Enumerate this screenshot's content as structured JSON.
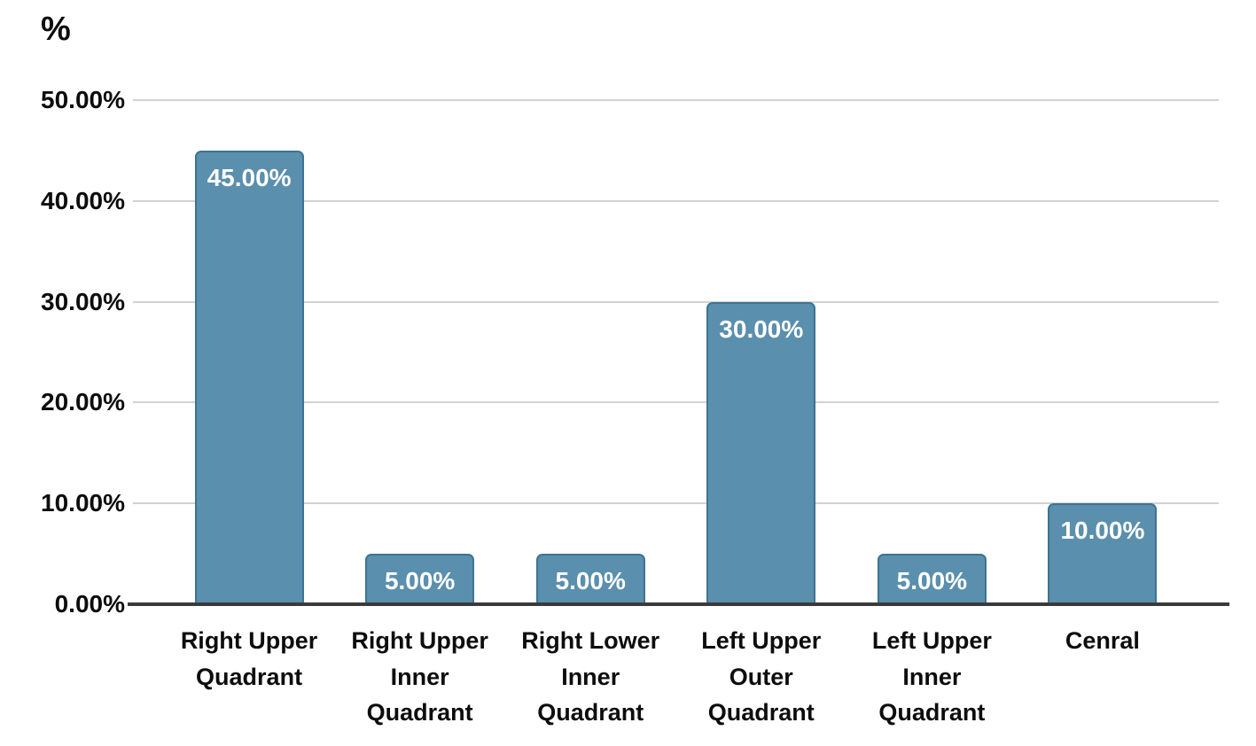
{
  "chart": {
    "y_axis_title": "%"
  },
  "chart_data": {
    "type": "bar",
    "title": "",
    "xlabel": "",
    "ylabel": "%",
    "categories": [
      "Right Upper Quadrant",
      "Right Upper Inner Quadrant",
      "Right Lower Inner Quadrant",
      "Left Upper Outer Quadrant",
      "Left Upper Inner Quadrant",
      "Cenral"
    ],
    "category_lines": [
      [
        "Right Upper",
        "Quadrant"
      ],
      [
        "Right Upper",
        "Inner",
        "Quadrant"
      ],
      [
        "Right Lower",
        "Inner",
        "Quadrant"
      ],
      [
        "Left Upper",
        "Outer",
        "Quadrant"
      ],
      [
        "Left Upper",
        "Inner",
        "Quadrant"
      ],
      [
        "Cenral"
      ]
    ],
    "values": [
      45,
      5,
      5,
      30,
      5,
      10
    ],
    "data_labels": [
      "45.00%",
      "5.00%",
      "5.00%",
      "30.00%",
      "5.00%",
      "10.00%"
    ],
    "ylim": [
      0,
      50
    ],
    "y_tick_step": 10,
    "y_tick_labels": [
      "0.00%",
      "10.00%",
      "20.00%",
      "30.00%",
      "40.00%",
      "50.00%"
    ],
    "grid": "horizontal",
    "legend": "none",
    "colors": {
      "bar_fill": "#5A8FAD",
      "bar_border": "#3D7394",
      "bar_label_text": "#FFFFFF",
      "gridline": "#D2D2D2",
      "axis_line": "#3A3A3A",
      "text": "#0D0D0D",
      "background": "#FFFFFF"
    }
  }
}
